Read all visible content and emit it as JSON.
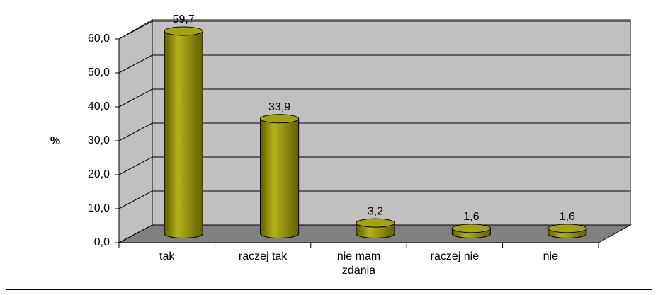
{
  "chart_data": {
    "type": "bar3d",
    "categories": [
      "tak",
      "raczej tak",
      "nie mam zdania",
      "raczej nie",
      "nie"
    ],
    "values": [
      59.7,
      33.9,
      3.2,
      1.6,
      1.6
    ],
    "value_labels": [
      "59,7",
      "33,9",
      "3,2",
      "1,6",
      "1,6"
    ],
    "color": "#808000",
    "y_label": "%",
    "ylim": [
      0,
      60
    ],
    "yticks": [
      {
        "value": 0,
        "label": "0,0"
      },
      {
        "value": 10,
        "label": "10,0"
      },
      {
        "value": 20,
        "label": "20,0"
      },
      {
        "value": 30,
        "label": "30,0"
      },
      {
        "value": 40,
        "label": "40,0"
      },
      {
        "value": 50,
        "label": "50,0"
      },
      {
        "value": 60,
        "label": "60,0"
      }
    ],
    "grid": true
  }
}
